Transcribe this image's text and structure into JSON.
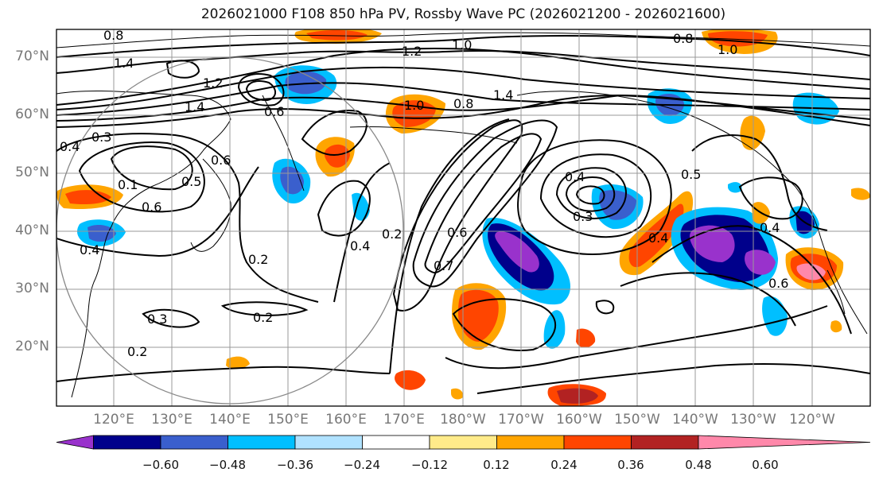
{
  "title": "2026021000 F108 850 hPa PV, Rossby Wave PC (2026021200 - 2026021600)",
  "lat_labels": [
    "70°N",
    "60°N",
    "50°N",
    "40°N",
    "30°N",
    "20°N"
  ],
  "lon_labels": [
    "120°E",
    "130°E",
    "140°E",
    "150°E",
    "160°E",
    "170°E",
    "180°W",
    "170°W",
    "160°W",
    "150°W",
    "140°W",
    "130°W",
    "120°W"
  ],
  "contour_labels": [
    "0.8",
    "1.2",
    "1.0",
    "0.8",
    "1.0",
    "1.4",
    "1.2",
    "1.4",
    "0.6",
    "1.0",
    "0.8",
    "1.4",
    "0.4",
    "0.3",
    "0.1",
    "0.6",
    "0.5",
    "0.6",
    "0.4",
    "0.2",
    "0.3",
    "0.2",
    "0.4",
    "0.2",
    "0.6",
    "0.7",
    "0.4",
    "0.3",
    "0.4",
    "0.5",
    "0.4",
    "0.6",
    "0.2"
  ],
  "colorbar": {
    "ticks": [
      "−0.60",
      "−0.48",
      "−0.36",
      "−0.24",
      "−0.12",
      "0.12",
      "0.24",
      "0.36",
      "0.48",
      "0.60"
    ],
    "colors": [
      "#9932cc",
      "#00008b",
      "#3a5fcd",
      "#00bfff",
      "#b0e2ff",
      "#ffffff",
      "#ffeb8a",
      "#ffa500",
      "#ff4500",
      "#b22222",
      "#ff88aa"
    ]
  },
  "palette": {
    "grid": "#999999",
    "axis_text": "#777777",
    "circle": "#888888"
  }
}
